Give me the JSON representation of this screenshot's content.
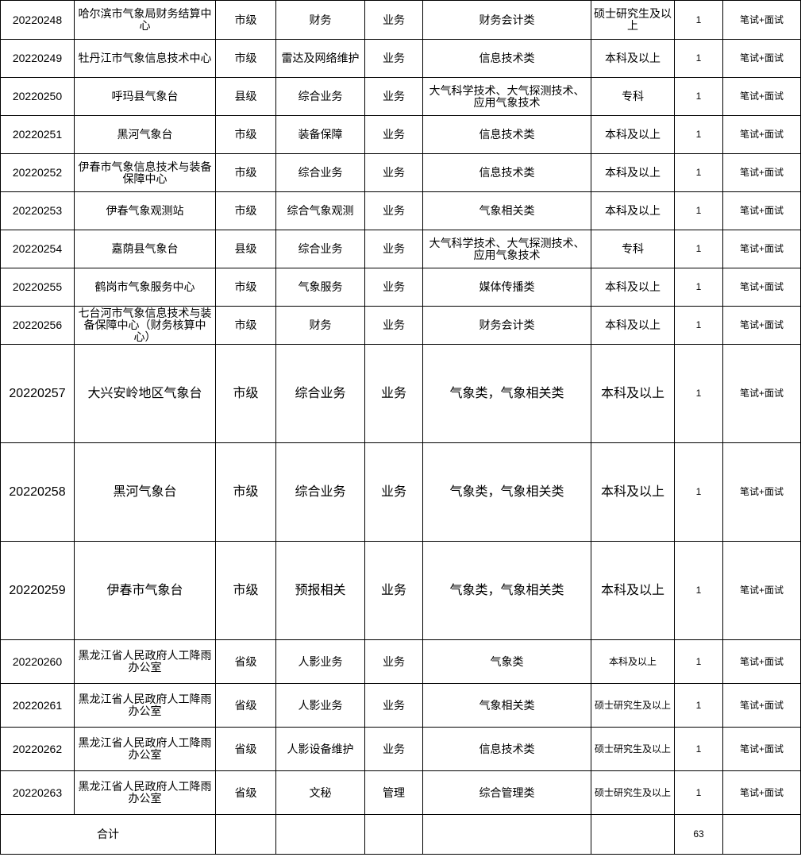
{
  "table": {
    "rows": [
      [
        "20220248",
        "哈尔滨市气象局财务结算中心",
        "市级",
        "财务",
        "业务",
        "财务会计类",
        "硕士研究生及以上",
        "1",
        "笔试+面试"
      ],
      [
        "20220249",
        "牡丹江市气象信息技术中心",
        "市级",
        "雷达及网络维护",
        "业务",
        "信息技术类",
        "本科及以上",
        "1",
        "笔试+面试"
      ],
      [
        "20220250",
        "呼玛县气象台",
        "县级",
        "综合业务",
        "业务",
        "大气科学技术、大气探测技术、应用气象技术",
        "专科",
        "1",
        "笔试+面试"
      ],
      [
        "20220251",
        "黑河气象台",
        "市级",
        "装备保障",
        "业务",
        "信息技术类",
        "本科及以上",
        "1",
        "笔试+面试"
      ],
      [
        "20220252",
        "伊春市气象信息技术与装备保障中心",
        "市级",
        "综合业务",
        "业务",
        "信息技术类",
        "本科及以上",
        "1",
        "笔试+面试"
      ],
      [
        "20220253",
        "伊春气象观测站",
        "市级",
        "综合气象观测",
        "业务",
        "气象相关类",
        "本科及以上",
        "1",
        "笔试+面试"
      ],
      [
        "20220254",
        "嘉荫县气象台",
        "县级",
        "综合业务",
        "业务",
        "大气科学技术、大气探测技术、应用气象技术",
        "专科",
        "1",
        "笔试+面试"
      ],
      [
        "20220255",
        "鹤岗市气象服务中心",
        "市级",
        "气象服务",
        "业务",
        "媒体传播类",
        "本科及以上",
        "1",
        "笔试+面试"
      ],
      [
        "20220256",
        "七台河市气象信息技术与装备保障中心（财务核算中心）",
        "市级",
        "财务",
        "业务",
        "财务会计类",
        "本科及以上",
        "1",
        "笔试+面试"
      ],
      [
        "20220257",
        "大兴安岭地区气象台",
        "市级",
        "综合业务",
        "业务",
        "气象类，气象相关类",
        "本科及以上",
        "1",
        "笔试+面试"
      ],
      [
        "20220258",
        "黑河气象台",
        "市级",
        "综合业务",
        "业务",
        "气象类，气象相关类",
        "本科及以上",
        "1",
        "笔试+面试"
      ],
      [
        "20220259",
        "伊春市气象台",
        "市级",
        "预报相关",
        "业务",
        "气象类，气象相关类",
        "本科及以上",
        "1",
        "笔试+面试"
      ],
      [
        "20220260",
        "黑龙江省人民政府人工降雨办公室",
        "省级",
        "人影业务",
        "业务",
        "气象类",
        "本科及以上",
        "1",
        "笔试+面试"
      ],
      [
        "20220261",
        "黑龙江省人民政府人工降雨办公室",
        "省级",
        "人影业务",
        "业务",
        "气象相关类",
        "硕士研究生及以上",
        "1",
        "笔试+面试"
      ],
      [
        "20220262",
        "黑龙江省人民政府人工降雨办公室",
        "省级",
        "人影设备维护",
        "业务",
        "信息技术类",
        "硕士研究生及以上",
        "1",
        "笔试+面试"
      ],
      [
        "20220263",
        "黑龙江省人民政府人工降雨办公室",
        "省级",
        "文秘",
        "管理",
        "综合管理类",
        "硕士研究生及以上",
        "1",
        "笔试+面试"
      ]
    ],
    "total": {
      "label": "合计",
      "count": 63
    }
  }
}
